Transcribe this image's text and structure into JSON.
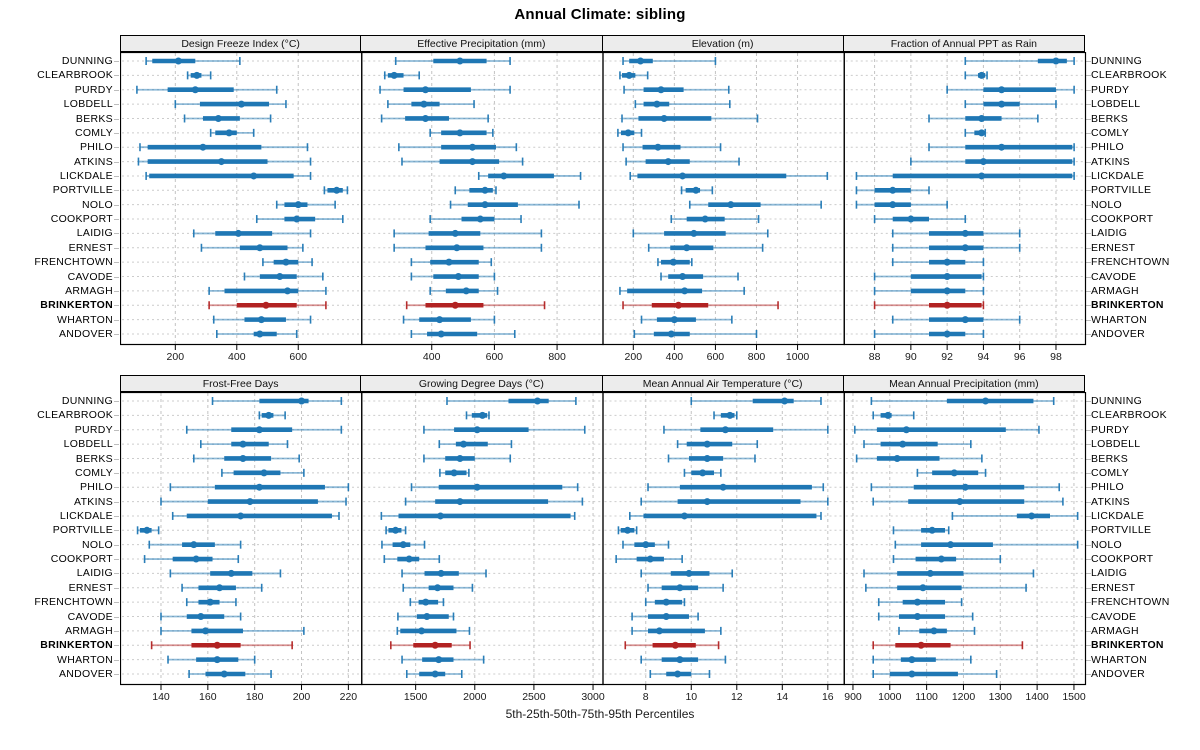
{
  "title": "Annual Climate: sibling",
  "caption": "5th-25th-50th-75th-95th Percentiles",
  "percentiles": [
    5,
    25,
    50,
    75,
    95
  ],
  "highlight_site": "BRINKERTON",
  "colors": {
    "series": "#1f77b4",
    "highlight": "#b22222",
    "strip_bg": "#ececec",
    "grid": "#c3c3c3",
    "border": "#000000"
  },
  "sites": [
    "DUNNING",
    "CLEARBROOK",
    "PURDY",
    "LOBDELL",
    "BERKS",
    "COMLY",
    "PHILO",
    "ATKINS",
    "LICKDALE",
    "PORTVILLE",
    "NOLO",
    "COOKPORT",
    "LAIDIG",
    "ERNEST",
    "FRENCHTOWN",
    "CAVODE",
    "ARMAGH",
    "BRINKERTON",
    "WHARTON",
    "ANDOVER"
  ],
  "chart_data": [
    {
      "type": "range-dot",
      "title": "Design Freeze Index (°C)",
      "xlim": [
        20,
        805
      ],
      "ticks": [
        200,
        400,
        600
      ],
      "tick_labels": [
        "200",
        "400",
        "600"
      ],
      "series": [
        [
          105,
          125,
          210,
          265,
          410
        ],
        [
          240,
          250,
          270,
          285,
          315
        ],
        [
          75,
          175,
          265,
          390,
          530
        ],
        [
          200,
          280,
          415,
          505,
          560
        ],
        [
          230,
          290,
          340,
          410,
          510
        ],
        [
          315,
          330,
          375,
          400,
          455
        ],
        [
          85,
          110,
          290,
          480,
          630
        ],
        [
          80,
          110,
          350,
          500,
          640
        ],
        [
          105,
          115,
          455,
          585,
          640
        ],
        [
          685,
          695,
          725,
          745,
          760
        ],
        [
          530,
          555,
          600,
          630,
          720
        ],
        [
          465,
          555,
          595,
          655,
          745
        ],
        [
          260,
          330,
          405,
          515,
          640
        ],
        [
          285,
          410,
          475,
          565,
          615
        ],
        [
          485,
          520,
          560,
          600,
          645
        ],
        [
          425,
          475,
          540,
          595,
          680
        ],
        [
          310,
          360,
          565,
          600,
          690
        ],
        [
          310,
          400,
          495,
          595,
          690
        ],
        [
          325,
          425,
          480,
          560,
          640
        ],
        [
          335,
          455,
          475,
          530,
          595
        ]
      ]
    },
    {
      "type": "range-dot",
      "title": "Effective Precipitation (mm)",
      "xlim": [
        175,
        945
      ],
      "ticks": [
        400,
        600,
        800
      ],
      "tick_labels": [
        "400",
        "600",
        "800"
      ],
      "series": [
        [
          285,
          405,
          490,
          575,
          650
        ],
        [
          250,
          260,
          280,
          310,
          360
        ],
        [
          235,
          310,
          380,
          525,
          650
        ],
        [
          260,
          335,
          375,
          425,
          535
        ],
        [
          240,
          315,
          380,
          455,
          580
        ],
        [
          395,
          430,
          490,
          575,
          595
        ],
        [
          295,
          430,
          530,
          605,
          670
        ],
        [
          305,
          425,
          530,
          615,
          690
        ],
        [
          550,
          580,
          630,
          790,
          875
        ],
        [
          475,
          520,
          570,
          595,
          605
        ],
        [
          460,
          515,
          570,
          675,
          870
        ],
        [
          395,
          495,
          555,
          600,
          685
        ],
        [
          280,
          390,
          475,
          555,
          750
        ],
        [
          280,
          380,
          480,
          565,
          750
        ],
        [
          335,
          395,
          455,
          550,
          590
        ],
        [
          335,
          405,
          485,
          550,
          600
        ],
        [
          395,
          445,
          510,
          550,
          610
        ],
        [
          320,
          380,
          475,
          565,
          760
        ],
        [
          310,
          360,
          425,
          525,
          600
        ],
        [
          335,
          385,
          430,
          545,
          665
        ]
      ]
    },
    {
      "type": "range-dot",
      "title": "Elevation (m)",
      "xlim": [
        50,
        1225
      ],
      "ticks": [
        200,
        400,
        600,
        800,
        1000
      ],
      "tick_labels": [
        "200",
        "400",
        "600",
        "800",
        "1000"
      ],
      "series": [
        [
          150,
          180,
          235,
          295,
          600
        ],
        [
          135,
          145,
          180,
          210,
          270
        ],
        [
          155,
          250,
          335,
          445,
          665
        ],
        [
          210,
          250,
          315,
          375,
          670
        ],
        [
          145,
          225,
          350,
          580,
          805
        ],
        [
          125,
          140,
          175,
          205,
          240
        ],
        [
          150,
          245,
          320,
          430,
          625
        ],
        [
          165,
          260,
          370,
          475,
          715
        ],
        [
          185,
          220,
          440,
          945,
          1145
        ],
        [
          435,
          455,
          505,
          525,
          585
        ],
        [
          475,
          565,
          675,
          820,
          1115
        ],
        [
          385,
          460,
          550,
          645,
          810
        ],
        [
          200,
          350,
          495,
          650,
          855
        ],
        [
          275,
          380,
          460,
          590,
          830
        ],
        [
          320,
          335,
          395,
          475,
          485
        ],
        [
          335,
          370,
          440,
          540,
          710
        ],
        [
          135,
          170,
          450,
          535,
          740
        ],
        [
          150,
          290,
          420,
          565,
          905
        ],
        [
          240,
          315,
          400,
          505,
          680
        ],
        [
          205,
          300,
          385,
          475,
          800
        ]
      ]
    },
    {
      "type": "range-dot",
      "title": "Fraction of Annual PPT as Rain",
      "xlim": [
        86.3,
        99.6
      ],
      "ticks": [
        88,
        90,
        92,
        94,
        96,
        98
      ],
      "tick_labels": [
        "88",
        "90",
        "92",
        "94",
        "96",
        "98"
      ],
      "series": [
        [
          93.0,
          97.0,
          98.0,
          98.6,
          99.0
        ],
        [
          93.0,
          93.7,
          93.9,
          94.1,
          94.2
        ],
        [
          92.0,
          94.0,
          95.0,
          98.0,
          99.0
        ],
        [
          93.0,
          94.0,
          95.0,
          96.0,
          98.0
        ],
        [
          91.0,
          93.0,
          93.9,
          95.0,
          97.0
        ],
        [
          93.0,
          93.5,
          93.9,
          94.0,
          94.1
        ],
        [
          91.0,
          93.0,
          95.0,
          98.9,
          99.0
        ],
        [
          90.0,
          93.0,
          94.0,
          98.9,
          99.0
        ],
        [
          87.0,
          89.0,
          93.9,
          98.9,
          99.0
        ],
        [
          87.0,
          88.0,
          89.0,
          90.0,
          91.0
        ],
        [
          87.0,
          88.0,
          89.0,
          90.0,
          92.0
        ],
        [
          88.0,
          89.0,
          90.0,
          91.0,
          93.0
        ],
        [
          89.0,
          91.0,
          93.0,
          94.0,
          96.0
        ],
        [
          89.0,
          91.0,
          93.0,
          94.0,
          96.0
        ],
        [
          89.0,
          91.0,
          92.0,
          93.0,
          94.0
        ],
        [
          88.0,
          90.0,
          92.0,
          93.9,
          94.0
        ],
        [
          88.0,
          90.0,
          92.0,
          93.0,
          94.0
        ],
        [
          88.0,
          91.0,
          92.0,
          93.9,
          94.0
        ],
        [
          89.0,
          91.0,
          93.0,
          94.0,
          96.0
        ],
        [
          88.0,
          91.0,
          92.0,
          93.0,
          94.0
        ]
      ]
    },
    {
      "type": "range-dot",
      "title": "Frost-Free Days",
      "xlim": [
        122.5,
        225.5
      ],
      "ticks": [
        140,
        160,
        180,
        200,
        220
      ],
      "tick_labels": [
        "140",
        "160",
        "180",
        "200",
        "220"
      ],
      "series": [
        [
          162,
          182,
          200,
          203,
          217
        ],
        [
          182,
          183,
          186,
          188,
          193
        ],
        [
          151,
          170,
          182,
          196,
          217
        ],
        [
          157,
          170,
          175,
          186,
          194
        ],
        [
          154,
          167,
          175,
          187,
          199
        ],
        [
          166,
          171,
          184,
          191,
          201
        ],
        [
          144,
          163,
          182,
          210,
          220
        ],
        [
          140,
          160,
          178,
          207,
          219
        ],
        [
          145,
          151,
          174,
          213,
          216
        ],
        [
          130,
          131,
          134,
          136,
          139
        ],
        [
          135,
          149,
          154,
          163,
          174
        ],
        [
          133,
          145,
          155,
          162,
          173
        ],
        [
          144,
          161,
          170,
          179,
          191
        ],
        [
          149,
          156,
          165,
          172,
          183
        ],
        [
          151,
          156,
          161,
          165,
          172
        ],
        [
          140,
          151,
          157,
          167,
          174
        ],
        [
          140,
          153,
          159,
          175,
          201
        ],
        [
          136,
          153,
          164,
          174,
          196
        ],
        [
          143,
          155,
          164,
          173,
          180
        ],
        [
          152,
          159,
          167,
          176,
          187
        ]
      ]
    },
    {
      "type": "range-dot",
      "title": "Growing Degree Days (°C)",
      "xlim": [
        1040,
        3080
      ],
      "ticks": [
        1500,
        2000,
        2500,
        3000
      ],
      "tick_labels": [
        "1500",
        "2000",
        "2500",
        "3000"
      ],
      "series": [
        [
          1765,
          2285,
          2530,
          2625,
          2855
        ],
        [
          1930,
          1975,
          2065,
          2105,
          2120
        ],
        [
          1570,
          1825,
          2020,
          2455,
          2930
        ],
        [
          1700,
          1840,
          1905,
          2110,
          2310
        ],
        [
          1570,
          1750,
          1875,
          2000,
          2300
        ],
        [
          1705,
          1750,
          1825,
          1930,
          1950
        ],
        [
          1465,
          1695,
          2020,
          2740,
          2870
        ],
        [
          1415,
          1665,
          1875,
          2620,
          2910
        ],
        [
          1210,
          1355,
          1710,
          2810,
          2845
        ],
        [
          1250,
          1270,
          1330,
          1380,
          1415
        ],
        [
          1215,
          1305,
          1395,
          1455,
          1575
        ],
        [
          1235,
          1345,
          1445,
          1530,
          1700
        ],
        [
          1385,
          1575,
          1715,
          1865,
          2095
        ],
        [
          1395,
          1610,
          1685,
          1820,
          1980
        ],
        [
          1455,
          1525,
          1585,
          1690,
          1735
        ],
        [
          1350,
          1510,
          1595,
          1780,
          1820
        ],
        [
          1345,
          1370,
          1550,
          1845,
          1955
        ],
        [
          1290,
          1480,
          1665,
          1805,
          1960
        ],
        [
          1385,
          1555,
          1695,
          1820,
          2075
        ],
        [
          1425,
          1530,
          1665,
          1750,
          1890
        ]
      ]
    },
    {
      "type": "range-dot",
      "title": "Mean Annual Air Temperature (°C)",
      "xlim": [
        6.1,
        16.7
      ],
      "ticks": [
        8,
        10,
        12,
        14,
        16
      ],
      "tick_labels": [
        "8",
        "10",
        "12",
        "14",
        "16"
      ],
      "series": [
        [
          10.0,
          12.7,
          14.1,
          14.5,
          15.7
        ],
        [
          11.0,
          11.3,
          11.7,
          11.9,
          12.0
        ],
        [
          8.8,
          10.4,
          11.5,
          13.6,
          16.0
        ],
        [
          9.4,
          9.8,
          10.7,
          11.8,
          12.9
        ],
        [
          9.0,
          9.9,
          10.7,
          11.4,
          12.8
        ],
        [
          9.7,
          10.0,
          10.5,
          11.0,
          11.3
        ],
        [
          8.1,
          9.5,
          11.4,
          15.3,
          15.8
        ],
        [
          7.8,
          9.4,
          10.7,
          14.8,
          16.0
        ],
        [
          7.3,
          7.9,
          9.7,
          15.5,
          15.7
        ],
        [
          6.8,
          6.9,
          7.2,
          7.5,
          7.6
        ],
        [
          7.0,
          7.5,
          8.0,
          8.4,
          9.0
        ],
        [
          6.7,
          7.6,
          8.2,
          8.8,
          9.6
        ],
        [
          7.8,
          9.1,
          9.9,
          10.8,
          11.8
        ],
        [
          8.1,
          8.7,
          9.5,
          10.3,
          11.4
        ],
        [
          8.0,
          8.4,
          8.9,
          9.6,
          9.7
        ],
        [
          7.4,
          8.1,
          8.9,
          9.9,
          10.3
        ],
        [
          7.4,
          8.1,
          8.6,
          10.6,
          11.3
        ],
        [
          7.1,
          8.3,
          9.3,
          10.2,
          11.2
        ],
        [
          7.8,
          8.7,
          9.5,
          10.3,
          11.5
        ],
        [
          8.2,
          8.9,
          9.4,
          10.0,
          10.8
        ]
      ]
    },
    {
      "type": "range-dot",
      "title": "Mean Annual Precipitation (mm)",
      "xlim": [
        875,
        1530
      ],
      "ticks": [
        900,
        1000,
        1100,
        1200,
        1300,
        1400,
        1500
      ],
      "tick_labels": [
        "900",
        "1000",
        "1100",
        "1200",
        "1300",
        "1400",
        "1500"
      ],
      "series": [
        [
          950,
          1155,
          1260,
          1390,
          1445
        ],
        [
          955,
          975,
          995,
          1005,
          1065
        ],
        [
          905,
          965,
          1045,
          1315,
          1405
        ],
        [
          930,
          975,
          1035,
          1130,
          1220
        ],
        [
          910,
          965,
          1020,
          1135,
          1250
        ],
        [
          1075,
          1115,
          1175,
          1240,
          1260
        ],
        [
          950,
          1065,
          1205,
          1365,
          1460
        ],
        [
          955,
          1050,
          1190,
          1365,
          1470
        ],
        [
          1170,
          1345,
          1385,
          1435,
          1510
        ],
        [
          1010,
          1085,
          1115,
          1150,
          1160
        ],
        [
          1015,
          1085,
          1165,
          1280,
          1510
        ],
        [
          1010,
          1070,
          1140,
          1180,
          1300
        ],
        [
          930,
          1020,
          1110,
          1200,
          1390
        ],
        [
          935,
          1020,
          1090,
          1195,
          1370
        ],
        [
          970,
          1035,
          1075,
          1150,
          1195
        ],
        [
          970,
          1025,
          1075,
          1150,
          1225
        ],
        [
          1025,
          1080,
          1120,
          1155,
          1230
        ],
        [
          955,
          1015,
          1085,
          1165,
          1360
        ],
        [
          955,
          1030,
          1060,
          1125,
          1220
        ],
        [
          955,
          1000,
          1060,
          1185,
          1290
        ]
      ]
    }
  ]
}
